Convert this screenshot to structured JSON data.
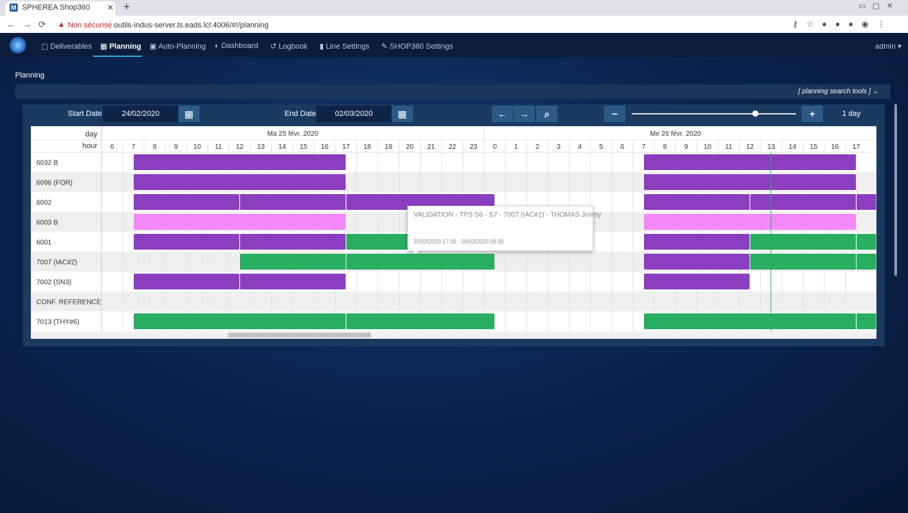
{
  "browser": {
    "tab_title": "SPHEREA Shop360",
    "security": "Non sécurisé",
    "url": "outils-indus-server.ts.eads.lcl:4006/#!/planning"
  },
  "nav": {
    "items": [
      "Deliverables",
      "Planning",
      "Auto-Planning",
      "Dashboard",
      "Logbook",
      "Line Settings",
      "SHOP360 Settings"
    ],
    "user": "admin"
  },
  "page": {
    "title": "Planning",
    "search_tools": "[ planning search tools ]"
  },
  "toolbar": {
    "start_label": "Start Date",
    "start_value": "24/02/2020",
    "end_label": "End Date",
    "end_value": "02/03/2020",
    "zoom": "1 day"
  },
  "grid": {
    "day_label": "day",
    "hour_label": "hour",
    "days": [
      "Ma 25 févr. 2020",
      "Me 26 févr. 2020"
    ],
    "hours": [
      6,
      7,
      8,
      9,
      10,
      11,
      12,
      13,
      14,
      15,
      16,
      17,
      18,
      19,
      20,
      21,
      22,
      23,
      0,
      1,
      2,
      3,
      4,
      5,
      6,
      7,
      8,
      9,
      10,
      11,
      12,
      13,
      14,
      15,
      16,
      17
    ],
    "rows": [
      "6032 B",
      "6096 (FOR)",
      "6002",
      "6003 B",
      "6001",
      "7007 (IAC#2)",
      "7002 (SN3)",
      "CONF. REFERENCE",
      "7013 (THY#6)"
    ]
  },
  "tooltip": {
    "title": "VALIDATION - TPS S6 - S7 - 7007 (IAC#2) - THOMAS Jimmy",
    "time": "25/02/2020 17:30 - 26/02/2020 00:30"
  }
}
